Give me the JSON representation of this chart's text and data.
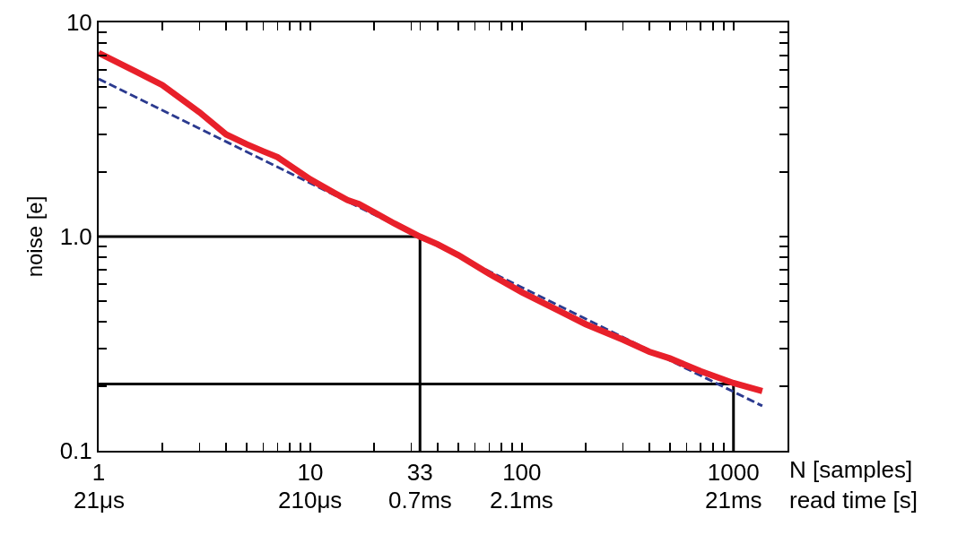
{
  "chart_data": {
    "type": "line",
    "xlabel": "N [samples]",
    "annotations": [
      "21μs",
      "210μs",
      "0.7ms",
      "2.1ms",
      "21ms",
      "read time [s]"
    ],
    "ylabel": "noise [e]",
    "log": "xy",
    "grid": false,
    "marker": "none",
    "xlim": [
      1,
      1800
    ],
    "ylim": [
      0.1,
      10
    ],
    "xticks": [
      1,
      {
        "value": 2,
        "label": null
      },
      {
        "value": 3,
        "label": null
      },
      {
        "value": 4,
        "label": null
      },
      {
        "value": 5,
        "label": null
      },
      {
        "value": 6,
        "label": null
      },
      {
        "value": 7,
        "label": null
      },
      {
        "value": 8,
        "label": null
      },
      {
        "value": 9,
        "label": null
      },
      10,
      {
        "value": 20,
        "label": null
      },
      {
        "value": 30,
        "label": null
      },
      33,
      {
        "value": 40,
        "label": null
      },
      {
        "value": 50,
        "label": null
      },
      {
        "value": 60,
        "label": null
      },
      {
        "value": 70,
        "label": null
      },
      {
        "value": 80,
        "label": null
      },
      {
        "value": 90,
        "label": null
      },
      100,
      {
        "value": 200,
        "label": null
      },
      {
        "value": 300,
        "label": null
      },
      {
        "value": 400,
        "label": null
      },
      {
        "value": 500,
        "label": null
      },
      {
        "value": 600,
        "label": null
      },
      {
        "value": 700,
        "label": null
      },
      {
        "value": 800,
        "label": null
      },
      {
        "value": 900,
        "label": null
      },
      1000
    ],
    "yticks": [
      0.1,
      {
        "value": 0.2,
        "label": null
      },
      {
        "value": 0.3,
        "label": null
      },
      {
        "value": 0.4,
        "label": null
      },
      {
        "value": 0.5,
        "label": null
      },
      {
        "value": 0.6,
        "label": null
      },
      {
        "value": 0.7,
        "label": null
      },
      {
        "value": 0.8,
        "label": null
      },
      {
        "value": 0.9,
        "label": null
      },
      {
        "value": 1,
        "label": "1.0"
      },
      {
        "value": 2,
        "label": null
      },
      {
        "value": 3,
        "label": null
      },
      {
        "value": 4,
        "label": null
      },
      {
        "value": 5,
        "label": null
      },
      {
        "value": 6,
        "label": null
      },
      {
        "value": 7,
        "label": null
      },
      {
        "value": 8,
        "label": null
      },
      {
        "value": 9,
        "label": null
      },
      10
    ],
    "series": [
      {
        "color": "#000000",
        "line_style": "solid",
        "x": [
          1,
          33,
          33
        ],
        "values": [
          1,
          1,
          0.1
        ]
      },
      {
        "color": "#000000",
        "line_style": "solid",
        "x": [
          1,
          1000,
          1000
        ],
        "values": [
          0.205,
          0.205,
          0.1
        ]
      },
      {
        "color": "#2b3a8f",
        "line_style": "dashed",
        "x": [
          1,
          1368
        ],
        "values": [
          5.45,
          0.162
        ]
      },
      {
        "color": "#e8202a",
        "line_style": "solid",
        "x": [
          1,
          1.5,
          2,
          3,
          4,
          5,
          6,
          7,
          8,
          10,
          13,
          15,
          17,
          20,
          25,
          33,
          40,
          50,
          70,
          100,
          150,
          200,
          300,
          400,
          500,
          700,
          1000,
          1368
        ],
        "values": [
          7.2,
          5.9,
          5.1,
          3.8,
          3.0,
          2.7,
          2.5,
          2.35,
          2.15,
          1.85,
          1.6,
          1.48,
          1.42,
          1.3,
          1.15,
          1.0,
          0.92,
          0.82,
          0.67,
          0.55,
          0.45,
          0.39,
          0.33,
          0.29,
          0.27,
          0.235,
          0.207,
          0.19
        ]
      }
    ]
  }
}
